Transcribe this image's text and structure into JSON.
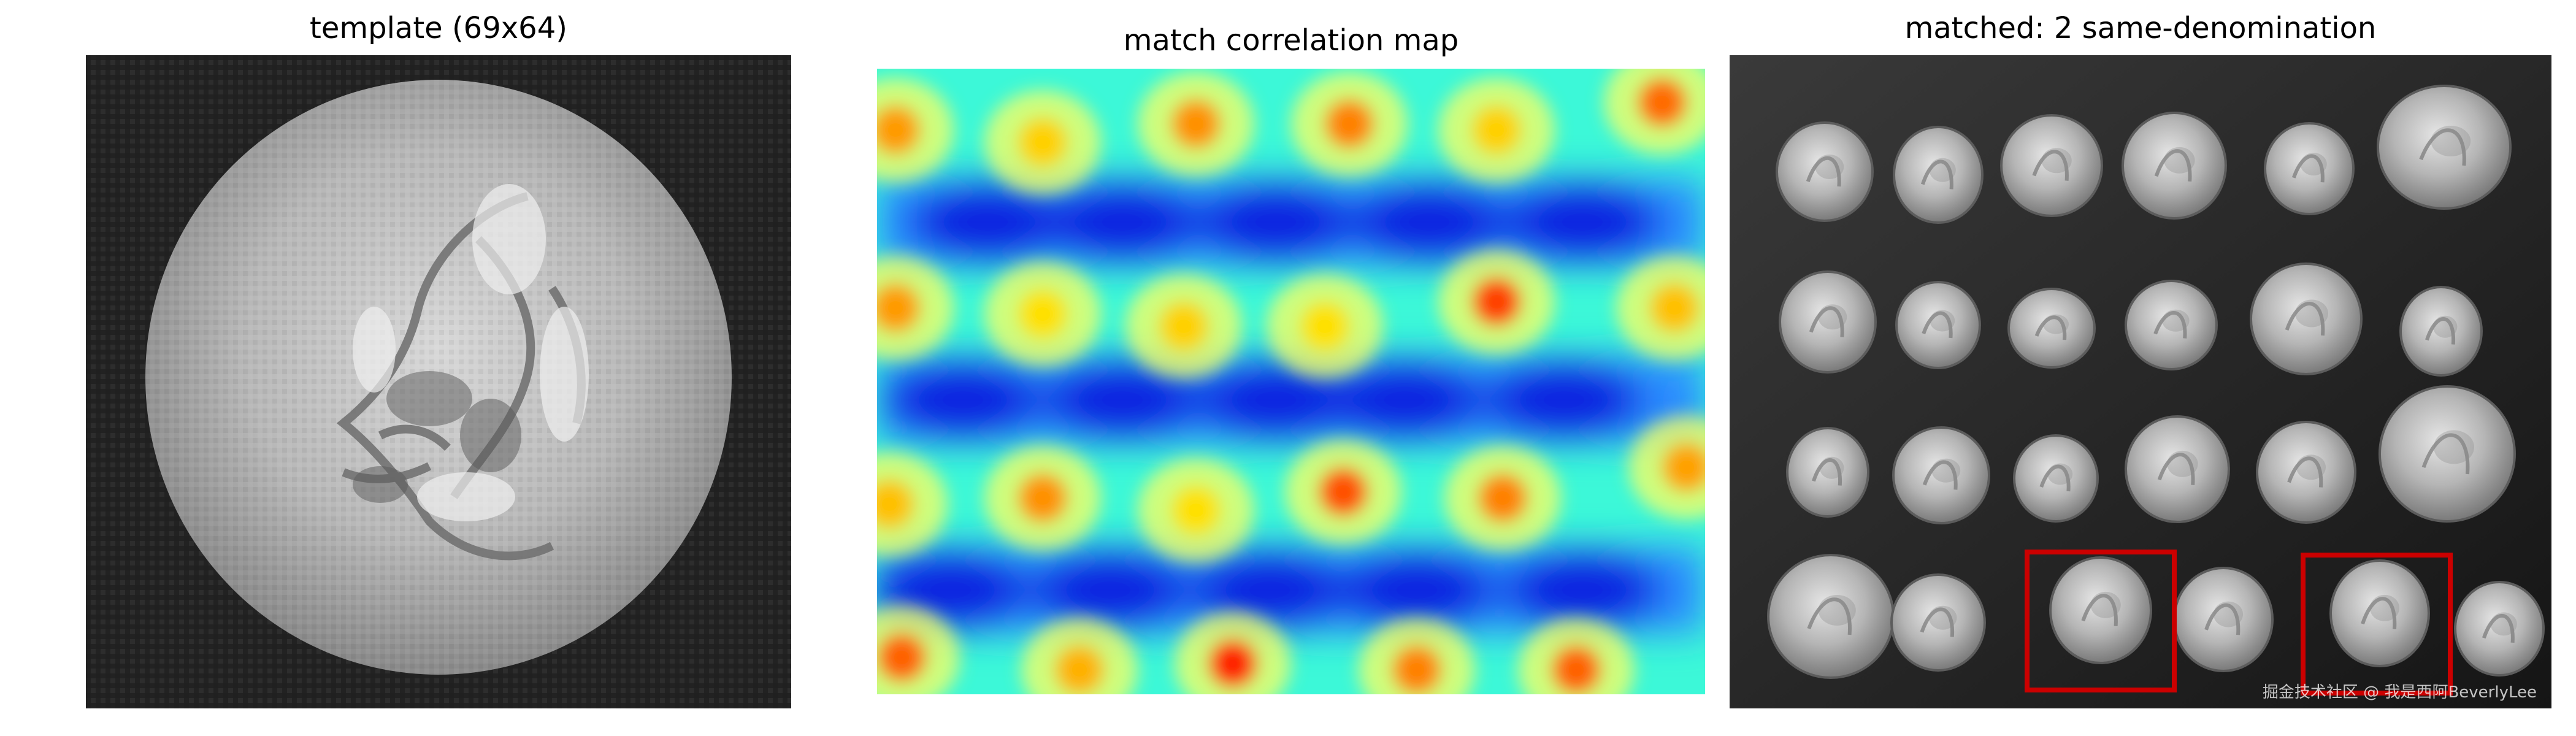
{
  "figure": {
    "panels": [
      {
        "title": "template (69x64)"
      },
      {
        "title": "match correlation map"
      },
      {
        "title": "matched: 2 same-denomination"
      }
    ]
  },
  "template": {
    "description_icon": "coin-portrait-icon"
  },
  "correlation_map": {
    "colormap": "jet",
    "rows": 4,
    "cols": 6
  },
  "match_boxes": {
    "color": "#cc0000",
    "count": 2
  },
  "watermark": {
    "text": "掘金技术社区 @ 我是西阿BeverlyLee"
  }
}
